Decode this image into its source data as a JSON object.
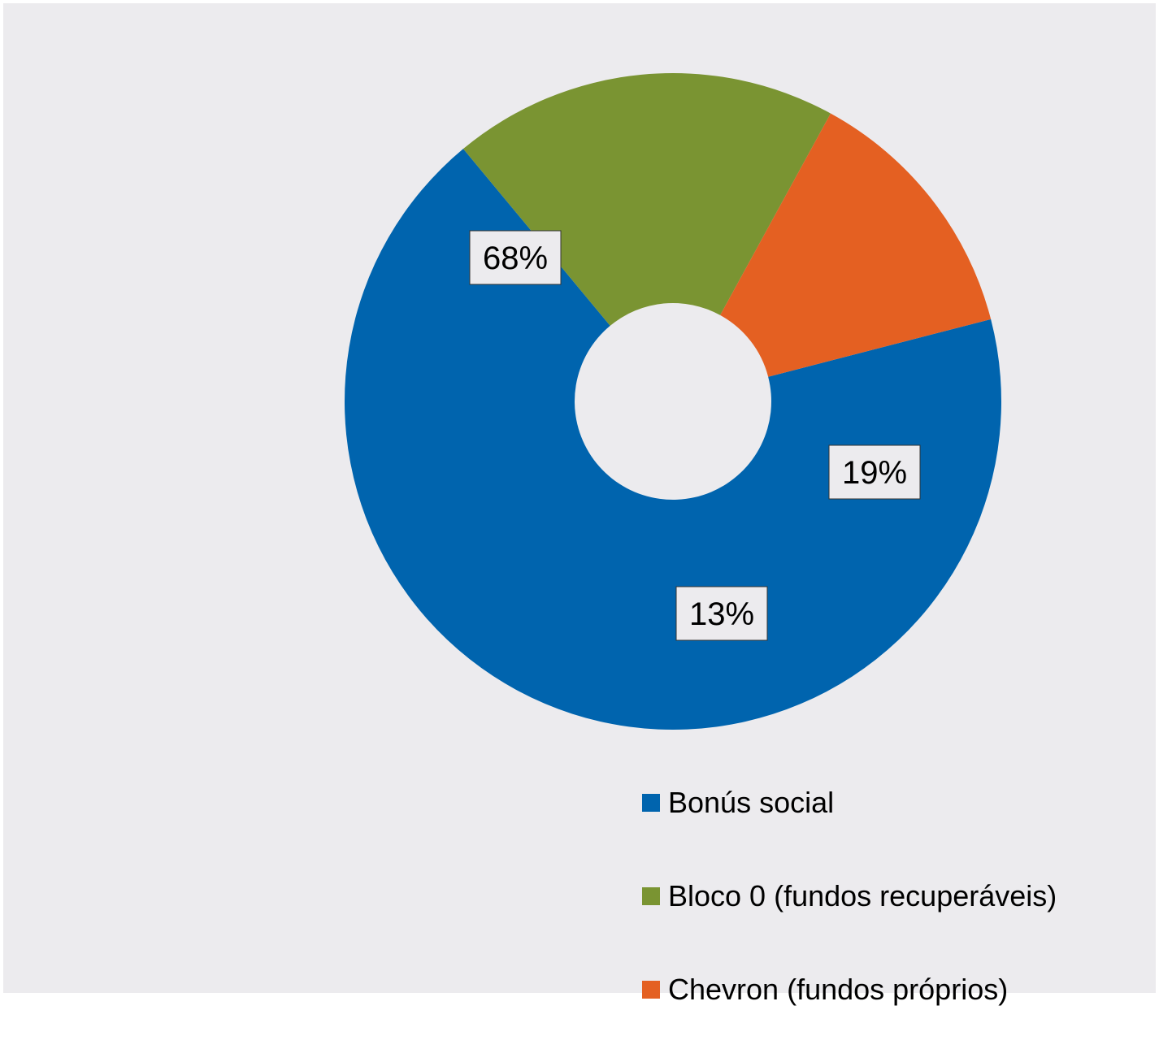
{
  "chart_data": {
    "type": "pie",
    "donut": true,
    "categories": [
      "Bonús social",
      "Bloco 0 (fundos recuperáveis)",
      "Chevron (fundos próprios)"
    ],
    "values": [
      68,
      19,
      13
    ],
    "value_labels": [
      "68%",
      "19%",
      "13%"
    ],
    "colors": [
      "#0064ae",
      "#7a9432",
      "#e46022"
    ],
    "legend_position": "bottom-right",
    "title": ""
  },
  "legend": {
    "items": [
      {
        "label": "Bonús social",
        "color": "#0064ae"
      },
      {
        "label": "Bloco 0 (fundos recuperáveis)",
        "color": "#7a9432"
      },
      {
        "label": "Chevron (fundos próprios)",
        "color": "#e46022"
      }
    ]
  },
  "colors": {
    "background": "#ecebee",
    "label_border": "#333333"
  }
}
